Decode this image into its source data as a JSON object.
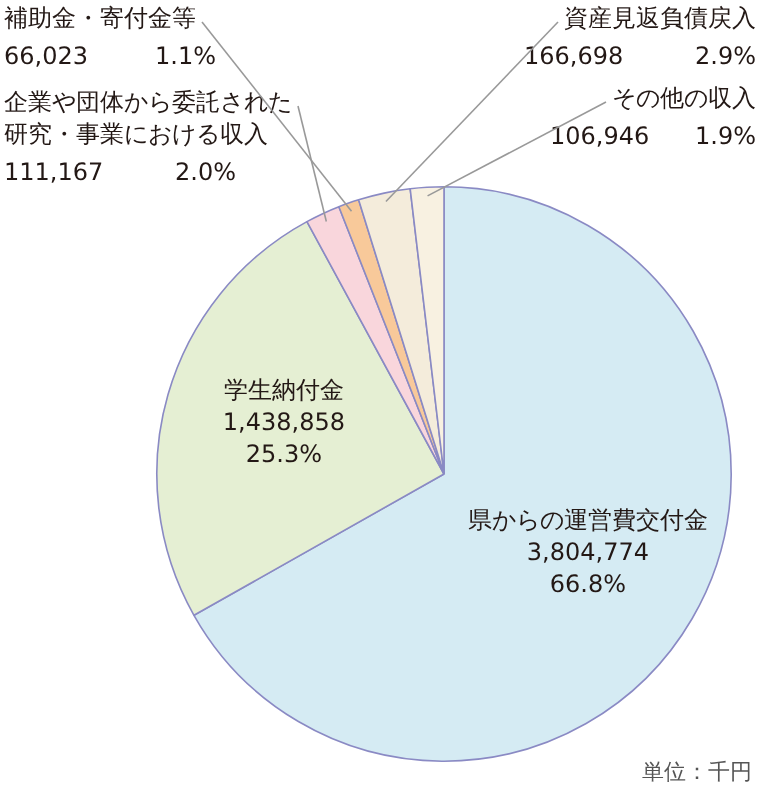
{
  "chart_data": {
    "type": "pie",
    "categories": [
      "県からの運営費交付金",
      "学生納付金",
      "企業や団体から委託された研究・事業における収入",
      "補助金・寄付金等",
      "資産見返負債戻入",
      "その他の収入"
    ],
    "values": [
      3804774,
      1438858,
      111167,
      66023,
      166698,
      106946
    ],
    "value_labels": [
      "3,804,774 66.8%",
      "1,438,858 25.3%",
      "111,167 2.0%",
      "66,023 1.1%",
      "166,698 2.9%",
      "106,946 1.9%"
    ],
    "colors": [
      "#d5ebf3",
      "#e5efd3",
      "#f9d6dc",
      "#f8c99a",
      "#f4ecdb",
      "#f8f1e1"
    ],
    "annotations": [
      "単位：千円"
    ],
    "legend": false
  }
}
